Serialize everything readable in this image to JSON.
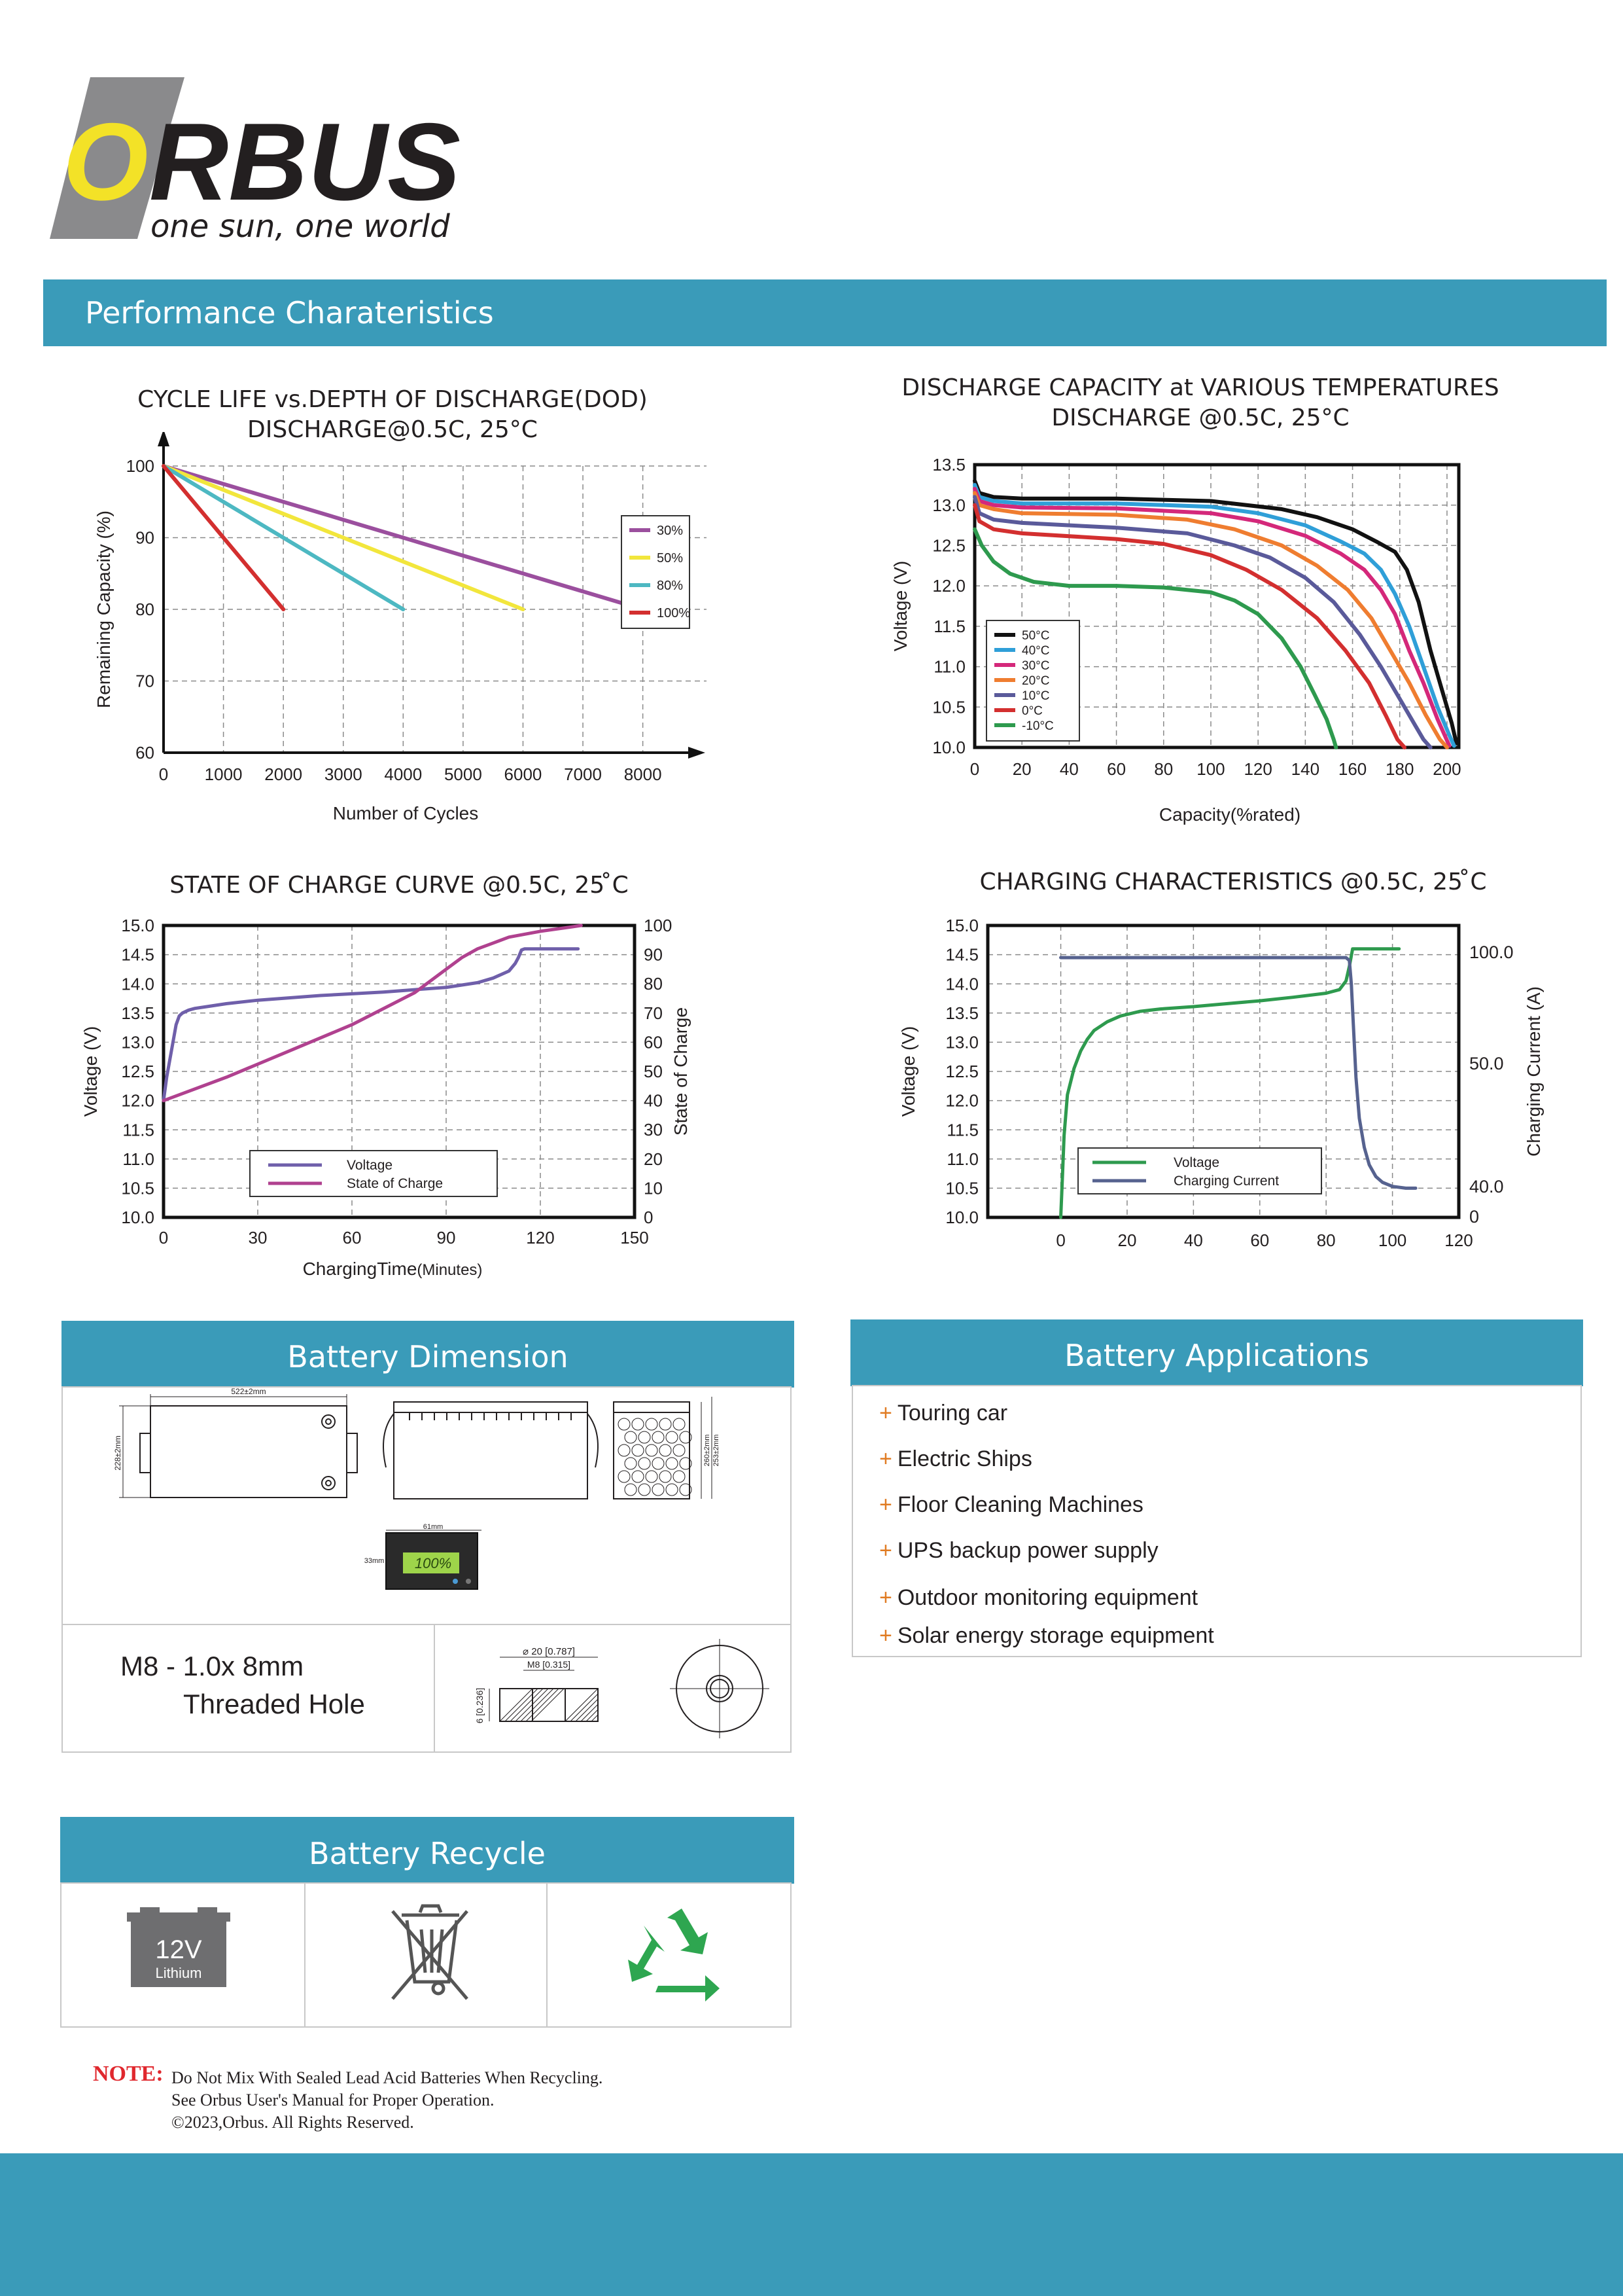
{
  "logo": {
    "brand": "ORBUS",
    "tagline": "one sun, one world"
  },
  "performance_banner": "Performance Charateristics",
  "chart_titles": {
    "cycle": [
      "CYCLE LIFE vs.DEPTH OF DISCHARGE(DOD)",
      "DISCHARGE@0.5C, 25°C"
    ],
    "temp": [
      "DISCHARGE CAPACITY at VARIOUS TEMPERATURES",
      "DISCHARGE @0.5C, 25°C"
    ],
    "soc": [
      "STATE OF CHARGE CURVE @0.5C, 25 ̊C"
    ],
    "charging": [
      "CHARGING CHARACTERISTICS @0.5C, 25 ̊C"
    ]
  },
  "chart_data": [
    {
      "id": "cycle",
      "type": "line",
      "xlabel": "Number of Cycles",
      "ylabel": "Remaining Capacity (%)",
      "xlim": [
        0,
        9500
      ],
      "ylim": [
        60,
        100
      ],
      "xticks": [
        0,
        1000,
        2000,
        3000,
        4000,
        5000,
        6000,
        7000,
        8000
      ],
      "yticks": [
        60,
        70,
        80,
        90,
        100
      ],
      "grid": true,
      "legend": "right",
      "series": [
        {
          "name": "30%",
          "color": "#9b4f9e",
          "x": [
            0,
            8000
          ],
          "y": [
            100,
            80
          ]
        },
        {
          "name": "50%",
          "color": "#f2e63c",
          "x": [
            0,
            6000
          ],
          "y": [
            100,
            80
          ]
        },
        {
          "name": "80%",
          "color": "#4db8c2",
          "x": [
            0,
            4000
          ],
          "y": [
            100,
            80
          ]
        },
        {
          "name": "100%",
          "color": "#d32f2f",
          "x": [
            0,
            2000
          ],
          "y": [
            100,
            80
          ]
        }
      ]
    },
    {
      "id": "temp",
      "type": "line",
      "xlabel": "Capacity(%rated)",
      "ylabel": "Voltage (V)",
      "xlim": [
        0,
        205
      ],
      "ylim": [
        10.0,
        13.5
      ],
      "xticks": [
        0,
        20,
        40,
        60,
        80,
        100,
        120,
        140,
        160,
        180,
        200
      ],
      "yticks": [
        10.0,
        10.5,
        11.0,
        11.5,
        12.0,
        12.5,
        13.0,
        13.5
      ],
      "grid": true,
      "legend": "bottom-left",
      "series": [
        {
          "name": "50°C",
          "color": "#111111",
          "x": [
            0,
            2,
            8,
            20,
            60,
            100,
            130,
            145,
            160,
            170,
            178,
            183,
            188,
            193,
            198,
            202,
            204
          ],
          "y": [
            13.3,
            13.15,
            13.1,
            13.08,
            13.08,
            13.05,
            12.95,
            12.85,
            12.7,
            12.55,
            12.42,
            12.2,
            11.8,
            11.2,
            10.7,
            10.3,
            10.05
          ]
        },
        {
          "name": "40°C",
          "color": "#2f9fd8",
          "x": [
            0,
            2,
            8,
            20,
            60,
            100,
            120,
            140,
            155,
            165,
            172,
            178,
            184,
            190,
            196,
            201,
            203
          ],
          "y": [
            13.25,
            13.1,
            13.05,
            13.02,
            13.02,
            12.98,
            12.9,
            12.75,
            12.55,
            12.4,
            12.2,
            11.9,
            11.5,
            11.0,
            10.5,
            10.15,
            10.02
          ]
        },
        {
          "name": "30°C",
          "color": "#d4287a",
          "x": [
            0,
            2,
            8,
            20,
            60,
            100,
            120,
            140,
            155,
            165,
            172,
            178,
            184,
            190,
            196,
            201
          ],
          "y": [
            13.2,
            13.05,
            13.0,
            12.97,
            12.96,
            12.9,
            12.8,
            12.62,
            12.4,
            12.2,
            11.95,
            11.65,
            11.2,
            10.8,
            10.35,
            10.02
          ]
        },
        {
          "name": "20°C",
          "color": "#ef7d30",
          "x": [
            0,
            2,
            8,
            20,
            60,
            90,
            110,
            130,
            145,
            158,
            168,
            176,
            184,
            191,
            197,
            200
          ],
          "y": [
            13.15,
            13.0,
            12.95,
            12.9,
            12.88,
            12.82,
            12.7,
            12.5,
            12.25,
            11.95,
            11.6,
            11.2,
            10.8,
            10.4,
            10.1,
            10.0
          ]
        },
        {
          "name": "10°C",
          "color": "#5a5a9a",
          "x": [
            0,
            2,
            8,
            20,
            60,
            90,
            110,
            125,
            140,
            152,
            163,
            172,
            180,
            186,
            190,
            193
          ],
          "y": [
            13.1,
            12.9,
            12.82,
            12.78,
            12.72,
            12.65,
            12.5,
            12.35,
            12.1,
            11.8,
            11.4,
            11.0,
            10.6,
            10.3,
            10.1,
            10.0
          ]
        },
        {
          "name": "0°C",
          "color": "#d32f2f",
          "x": [
            0,
            2,
            8,
            20,
            60,
            80,
            100,
            115,
            130,
            145,
            157,
            167,
            174,
            179,
            182
          ],
          "y": [
            13.0,
            12.8,
            12.7,
            12.65,
            12.58,
            12.52,
            12.38,
            12.2,
            11.95,
            11.6,
            11.2,
            10.8,
            10.4,
            10.1,
            10.0
          ]
        },
        {
          "name": "-10°C",
          "color": "#2e9a4e",
          "x": [
            0,
            3,
            8,
            15,
            25,
            40,
            60,
            80,
            100,
            110,
            120,
            130,
            138,
            144,
            149,
            152,
            153
          ],
          "y": [
            12.7,
            12.5,
            12.3,
            12.15,
            12.05,
            12.0,
            12.0,
            11.98,
            11.92,
            11.82,
            11.65,
            11.35,
            11.0,
            10.65,
            10.35,
            10.1,
            10.0
          ]
        }
      ]
    },
    {
      "id": "soc",
      "type": "line",
      "xlabel": "ChargingTime",
      "xlabel_unit": "(Minutes)",
      "ylabel": "Voltage (V)",
      "y2label": "State of Charge",
      "xlim": [
        0,
        150
      ],
      "ylim": [
        10.0,
        15.0
      ],
      "y2lim": [
        0,
        100
      ],
      "xticks": [
        0,
        30,
        60,
        90,
        120,
        150
      ],
      "yticks": [
        10.0,
        10.5,
        11.0,
        11.5,
        12.0,
        12.5,
        13.0,
        13.5,
        14.0,
        14.5,
        15.0
      ],
      "y2ticks": [
        0,
        10,
        20,
        30,
        40,
        50,
        60,
        70,
        80,
        90,
        100
      ],
      "grid": true,
      "legend": "bottom-center",
      "series": [
        {
          "name": "Voltage",
          "color": "#6f5faa",
          "axis": "y",
          "x": [
            0,
            0.5,
            1,
            2,
            3,
            4,
            5,
            6,
            8,
            10,
            15,
            20,
            30,
            40,
            50,
            60,
            70,
            80,
            90,
            100,
            105,
            110,
            112,
            113,
            114,
            115,
            132
          ],
          "y": [
            12.0,
            12.2,
            12.4,
            12.7,
            13.0,
            13.3,
            13.45,
            13.5,
            13.55,
            13.58,
            13.62,
            13.66,
            13.72,
            13.76,
            13.8,
            13.83,
            13.86,
            13.9,
            13.94,
            14.02,
            14.1,
            14.22,
            14.35,
            14.45,
            14.58,
            14.6,
            14.6
          ]
        },
        {
          "name": "State of Charge",
          "color": "#b0418f",
          "axis": "y2",
          "x": [
            0,
            20,
            40,
            60,
            80,
            90,
            95,
            100,
            105,
            110,
            120,
            130,
            133
          ],
          "y": [
            40,
            48,
            57,
            66,
            77,
            85,
            89,
            92,
            94,
            96,
            98,
            99.5,
            100
          ]
        }
      ]
    },
    {
      "id": "charging",
      "type": "line",
      "ylabel": "Voltage (V)",
      "y2label": "Charging Current (A)",
      "xlim": [
        -22,
        120
      ],
      "ylim": [
        10.0,
        15.0
      ],
      "xticks": [
        0,
        20,
        40,
        60,
        80,
        100,
        120
      ],
      "yticks": [
        10.0,
        10.5,
        11.0,
        11.5,
        12.0,
        12.5,
        13.0,
        13.5,
        14.0,
        14.5,
        15.0
      ],
      "y2ticks": [
        "100.0",
        "50.0",
        "40.0",
        "0"
      ],
      "grid": true,
      "legend": "bottom-center",
      "series": [
        {
          "name": "Voltage",
          "color": "#2e9a4e",
          "x": [
            0,
            0.5,
            1,
            2,
            4,
            6,
            8,
            10,
            14,
            18,
            24,
            30,
            40,
            50,
            60,
            70,
            80,
            84,
            86,
            87,
            88,
            102
          ],
          "y": [
            10.0,
            10.7,
            11.4,
            12.1,
            12.55,
            12.85,
            13.05,
            13.2,
            13.35,
            13.45,
            13.53,
            13.57,
            13.61,
            13.66,
            13.71,
            13.77,
            13.84,
            13.9,
            14.05,
            14.3,
            14.6,
            14.6
          ]
        },
        {
          "name": "Charging Current",
          "color": "#56628f",
          "x": [
            0,
            40,
            80,
            86,
            87,
            87.6,
            88.2,
            89,
            90,
            91.5,
            93,
            95,
            97,
            100,
            104,
            107
          ],
          "y": [
            14.45,
            14.45,
            14.45,
            14.45,
            14.4,
            14.0,
            13.3,
            12.4,
            11.7,
            11.2,
            10.9,
            10.7,
            10.6,
            10.53,
            10.5,
            10.5
          ]
        }
      ]
    }
  ],
  "dimension": {
    "header": "Battery Dimension",
    "len_label": "522±2mm",
    "w_label": "228±2mm",
    "h1_label": "260±2mm",
    "h2_label": "253±2mm",
    "meter_w": "61mm",
    "meter_h": "33mm",
    "meter_value": "100%",
    "thread_line1": "M8 - 1.0x 8mm",
    "thread_line2": "Threaded Hole",
    "dim_outer": "⌀ 20 [0.787]",
    "dim_inner": "M8 [0.315]",
    "dim_depth": "6 [0.236]"
  },
  "applications": {
    "header": "Battery Applications",
    "items": [
      "Touring car",
      "Electric Ships",
      "Floor Cleaning Machines",
      "UPS backup power supply",
      "Outdoor monitoring equipment",
      "Solar energy storage equipment"
    ]
  },
  "recycle": {
    "header": "Battery Recycle",
    "battery_voltage": "12V",
    "battery_type": "Lithium",
    "icons": [
      "battery-icon",
      "crossed-bin-icon",
      "recycle-icon"
    ]
  },
  "note": {
    "label": "NOTE:",
    "lines": [
      "Do Not Mix With Sealed Lead Acid Batteries When Recycling.",
      "See Orbus User's Manual for Proper Operation.",
      "©2023,Orbus. All Rights Reserved."
    ]
  },
  "colors": {
    "accent": "#3a9bb9",
    "logo_yellow": "#f3e227",
    "logo_grey": "#8a8a8c",
    "plus_orange": "#e07b22",
    "note_red": "#e0282e"
  }
}
